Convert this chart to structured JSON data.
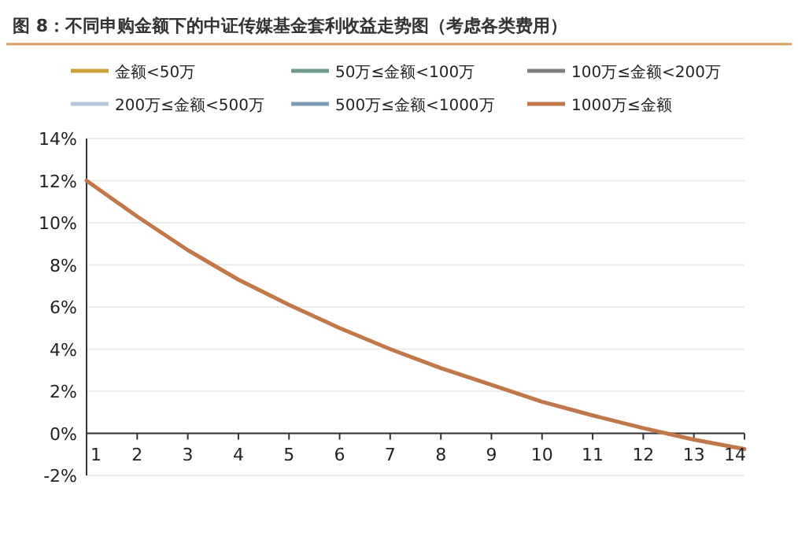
{
  "chart_data": {
    "type": "line",
    "title": "图 8：不同申购金额下的中证传媒基金套利收益走势图（考虑各类费用）",
    "x": [
      1,
      2,
      3,
      4,
      5,
      6,
      7,
      8,
      9,
      10,
      11,
      12,
      13,
      14
    ],
    "xlim": [
      1,
      14
    ],
    "xticks": [
      1,
      2,
      3,
      4,
      5,
      6,
      7,
      8,
      9,
      10,
      11,
      12,
      13,
      14
    ],
    "ylim": [
      -2,
      14
    ],
    "yticks": [
      {
        "value": -2,
        "label": "-2%"
      },
      {
        "value": 0,
        "label": "0%"
      },
      {
        "value": 2,
        "label": "2%"
      },
      {
        "value": 4,
        "label": "4%"
      },
      {
        "value": 6,
        "label": "6%"
      },
      {
        "value": 8,
        "label": "8%"
      },
      {
        "value": 10,
        "label": "10%"
      },
      {
        "value": 12,
        "label": "12%"
      },
      {
        "value": 14,
        "label": "14%"
      }
    ],
    "grid": "y",
    "legend": "top",
    "marker": "none",
    "line_style": "solid",
    "series": [
      {
        "name": "金额<50万",
        "color": "#c9a13b",
        "values": [
          null,
          null,
          null,
          null,
          null,
          null,
          null,
          null,
          null,
          null,
          null,
          null,
          null,
          null
        ]
      },
      {
        "name": "50万≤金额<100万",
        "color": "#6f9a8d",
        "values": [
          null,
          null,
          null,
          null,
          null,
          null,
          null,
          null,
          null,
          null,
          null,
          null,
          null,
          null
        ]
      },
      {
        "name": "100万≤金额<200万",
        "color": "#7f7f7f",
        "values": [
          null,
          null,
          null,
          null,
          null,
          null,
          null,
          null,
          null,
          null,
          null,
          null,
          null,
          null
        ]
      },
      {
        "name": "200万≤金额<500万",
        "color": "#b4c7dc",
        "values": [
          null,
          null,
          null,
          null,
          null,
          null,
          null,
          null,
          null,
          null,
          null,
          null,
          null,
          null
        ]
      },
      {
        "name": "500万≤金额<1000万",
        "color": "#7a9bb5",
        "values": [
          null,
          null,
          null,
          null,
          null,
          null,
          null,
          null,
          null,
          null,
          null,
          null,
          null,
          null
        ]
      },
      {
        "name": "1000万≤金额",
        "color": "#c0784a",
        "values": [
          12.0,
          10.3,
          8.7,
          7.3,
          6.1,
          5.0,
          4.0,
          3.1,
          2.3,
          1.5,
          0.85,
          0.25,
          -0.3,
          -0.75
        ]
      }
    ]
  }
}
